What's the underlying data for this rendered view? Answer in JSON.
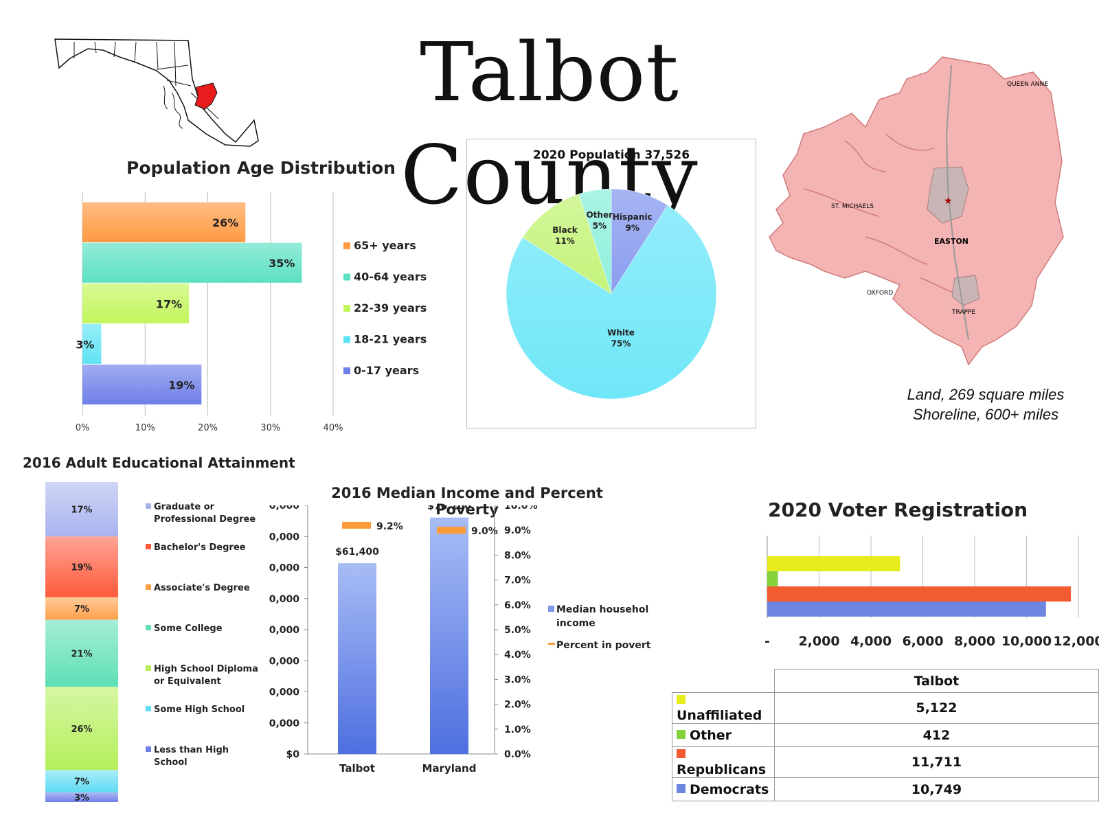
{
  "title": "Talbot County",
  "colors": {
    "age": [
      "#6f7fe8",
      "#5fe3f4",
      "#c3f55c",
      "#5be0c3",
      "#ff9a42"
    ],
    "edu": [
      "#6f7fe8",
      "#60dcf4",
      "#b4ef5a",
      "#5edfb6",
      "#ffa04a",
      "#ff5a3c",
      "#a9b4ef"
    ],
    "pie": [
      "#8a9cef",
      "#6fe7f8",
      "#c4f37a",
      "#8ff0dc"
    ],
    "income_bar": "#7f99ef",
    "poverty": "#ff9a38",
    "voter": [
      "#6b85e0",
      "#f35b30",
      "#84d13a",
      "#e7ec1c"
    ],
    "map_fill": "#f4b4b4",
    "state_highlight": "#e81c1c"
  },
  "map_labels": [
    "QUEEN ANNE",
    "ST. MICHAELS",
    "EASTON",
    "OXFORD",
    "TRAPPE"
  ],
  "map_caption": [
    "Land, 269 square miles",
    "Shoreline, 600+ miles"
  ],
  "chart_data": [
    {
      "type": "bar",
      "orientation": "horizontal",
      "title": "Population Age Distribution",
      "categories": [
        "0-17 years",
        "18-21 years",
        "22-39 years",
        "40-64 years",
        "65+ years"
      ],
      "values": [
        19,
        3,
        17,
        35,
        26
      ],
      "value_labels": [
        "19%",
        "3%",
        "17%",
        "35%",
        "26%"
      ],
      "xlim": [
        0,
        40
      ],
      "x_ticks": [
        "0%",
        "10%",
        "20%",
        "30%",
        "40%"
      ],
      "grid": true,
      "legend_position": "right"
    },
    {
      "type": "pie",
      "title": "2020 Population 37,526",
      "slices": [
        {
          "label": "Hispanic",
          "value": 9,
          "value_label": "9%"
        },
        {
          "label": "White",
          "value": 75,
          "value_label": "75%"
        },
        {
          "label": "Black",
          "value": 11,
          "value_label": "11%"
        },
        {
          "label": "Other",
          "value": 5,
          "value_label": "5%"
        }
      ]
    },
    {
      "type": "bar",
      "orientation": "stacked-vertical",
      "title": "2016 Adult Educational Attainment",
      "categories": [
        "Less than High School",
        "Some High School",
        "High School Diploma or Equivalent",
        "Some College",
        "Associate's Degree",
        "Bachelor's Degree",
        "Graduate or Professional Degree"
      ],
      "legend_lines": [
        [
          "Less than High",
          "School"
        ],
        [
          "Some High School"
        ],
        [
          "High School Diploma",
          "or Equivalent"
        ],
        [
          "Some College"
        ],
        [
          "Associate's Degree"
        ],
        [
          "Bachelor's Degree"
        ],
        [
          "Graduate or",
          "Professional Degree"
        ]
      ],
      "values": [
        3,
        7,
        26,
        21,
        7,
        19,
        17
      ],
      "value_labels": [
        "3%",
        "7%",
        "26%",
        "21%",
        "7%",
        "19%",
        "17%"
      ],
      "legend_position": "right"
    },
    {
      "type": "bar",
      "title": "2016 Median Income and Percent Poverty",
      "categories": [
        "Talbot",
        "Maryland"
      ],
      "series": [
        {
          "name": "Median household income",
          "values": [
            61400,
            76100
          ],
          "value_labels": [
            "$61,400",
            "$76,100"
          ],
          "axis": "left"
        },
        {
          "name": "Percent in poverty",
          "values": [
            9.2,
            9.0
          ],
          "value_labels": [
            "9.2%",
            "9.0%"
          ],
          "axis": "right"
        }
      ],
      "legend_lines": [
        [
          "Median househol",
          "income"
        ],
        [
          "Percent in povert"
        ]
      ],
      "y_left_ticks": [
        "$0",
        "0,000",
        "0,000",
        "0,000",
        "0,000",
        "0,000",
        "0,000",
        "0,000",
        "0,000"
      ],
      "y_right_ticks": [
        "0.0%",
        "1.0%",
        "2.0%",
        "3.0%",
        "4.0%",
        "5.0%",
        "6.0%",
        "7.0%",
        "8.0%",
        "9.0%",
        "10.0%"
      ],
      "ylim_left": [
        0,
        80000
      ],
      "ylim_right": [
        0,
        10
      ]
    },
    {
      "type": "bar",
      "orientation": "horizontal",
      "title": "2020 Voter Registration",
      "categories": [
        "Democrats",
        "Republicans",
        "Other",
        "Unaffiliated"
      ],
      "series": [
        {
          "name": "Talbot",
          "values": [
            10749,
            11711,
            412,
            5122
          ]
        }
      ],
      "value_labels": [
        "10,749",
        "11,711",
        "412",
        "5,122"
      ],
      "xlim": [
        0,
        12000
      ],
      "x_ticks": [
        "-",
        "2,000",
        "4,000",
        "6,000",
        "8,000",
        "10,000",
        "12,000"
      ],
      "grid": true,
      "table_header": "Talbot"
    }
  ]
}
